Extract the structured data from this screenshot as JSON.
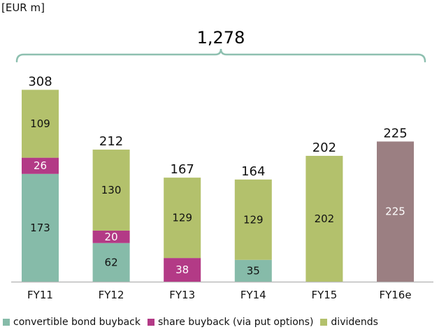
{
  "unit_label": "[EUR m]",
  "total": {
    "label": "1,278"
  },
  "colors": {
    "convertible": "#86bba9",
    "share": "#b33a86",
    "dividends": "#b3c16c",
    "fy16e": "#9b7f82",
    "axis": "#bbbbbb",
    "brace": "#8ec0b0"
  },
  "chart_data": {
    "type": "bar",
    "stacked": true,
    "categories": [
      "FY11",
      "FY12",
      "FY13",
      "FY14",
      "FY15",
      "FY16e"
    ],
    "series": [
      {
        "name": "convertible bond buyback",
        "values": [
          173,
          62,
          0,
          35,
          0,
          0
        ],
        "color": "#86bba9"
      },
      {
        "name": "share buyback (via put options)",
        "values": [
          26,
          20,
          38,
          0,
          0,
          0
        ],
        "color": "#b33a86"
      },
      {
        "name": "dividends",
        "values": [
          109,
          130,
          129,
          129,
          202,
          0
        ],
        "color": "#b3c16c"
      },
      {
        "name": "",
        "values": [
          0,
          0,
          0,
          0,
          0,
          225
        ],
        "color": "#9b7f82"
      }
    ],
    "totals": [
      308,
      212,
      167,
      164,
      202,
      225
    ],
    "total_all": 1278,
    "legend_position": "bottom",
    "grid": false
  },
  "legend": [
    {
      "label": "convertible bond buyback",
      "color": "#86bba9"
    },
    {
      "label": "share buyback (via put options)",
      "color": "#b33a86"
    },
    {
      "label": "dividends",
      "color": "#b3c16c"
    }
  ]
}
